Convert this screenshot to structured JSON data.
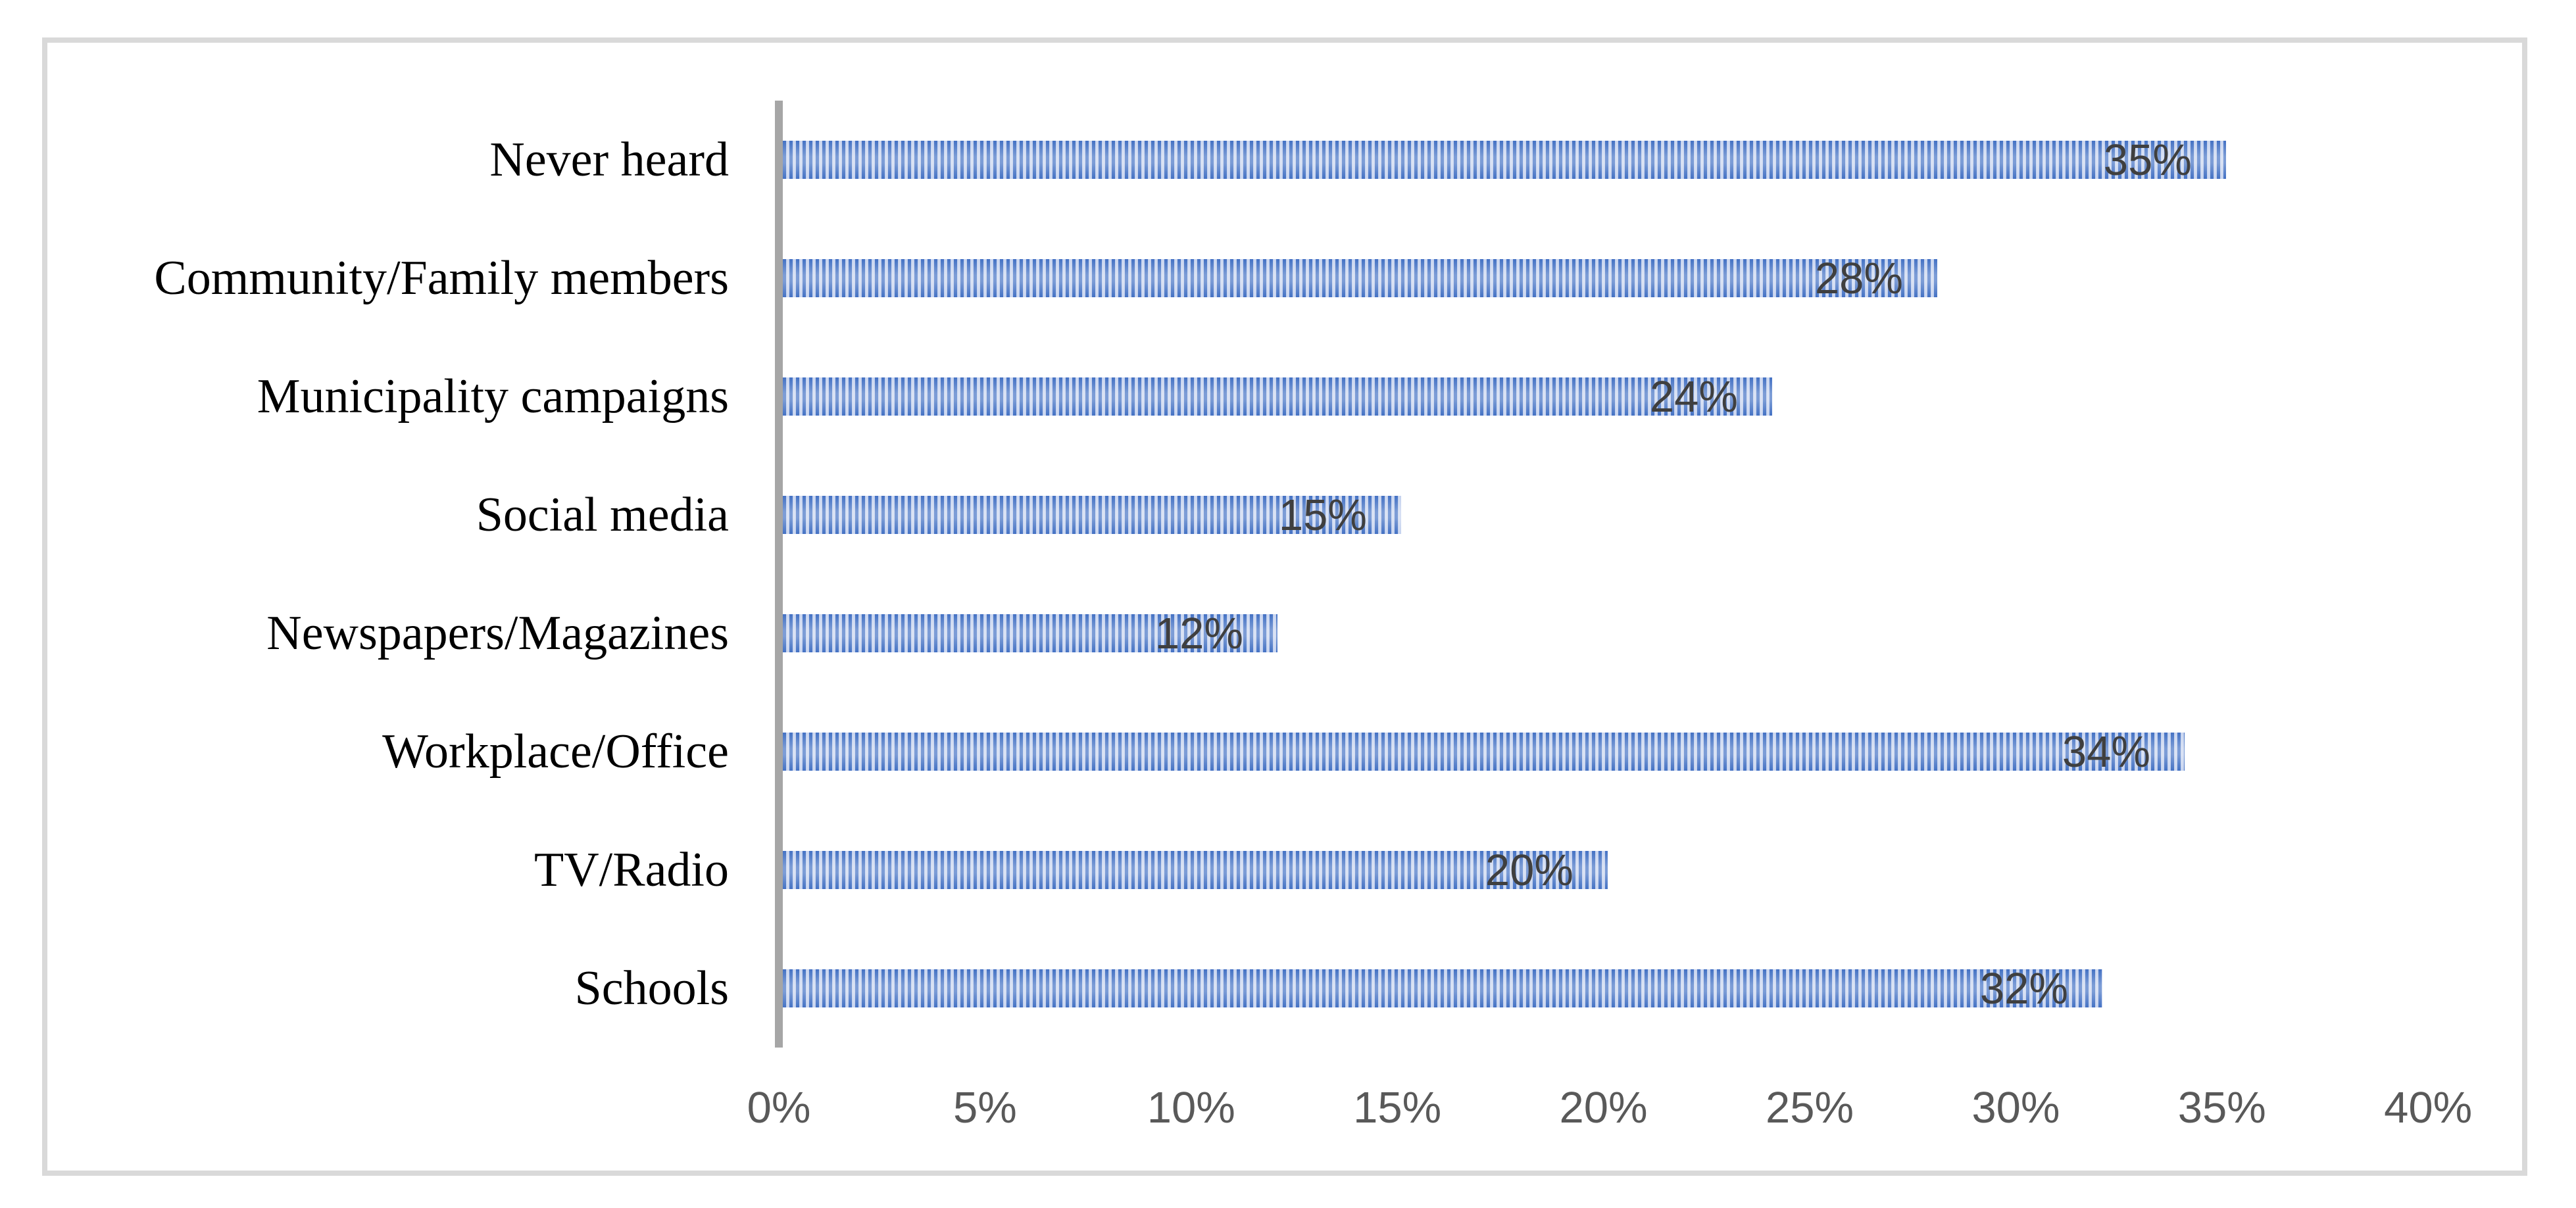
{
  "chart_data": {
    "type": "bar",
    "orientation": "horizontal",
    "title": "",
    "xlabel": "",
    "ylabel": "",
    "categories": [
      "Never heard",
      "Community/Family members",
      "Municipality campaigns",
      "Social media",
      "Newspapers/Magazines",
      "Workplace/Office",
      "TV/Radio",
      "Schools"
    ],
    "values": [
      35,
      28,
      24,
      15,
      12,
      34,
      20,
      32
    ],
    "data_labels": [
      "35%",
      "28%",
      "24%",
      "15%",
      "12%",
      "34%",
      "20%",
      "32%"
    ],
    "x_ticks": [
      "0%",
      "5%",
      "10%",
      "15%",
      "20%",
      "25%",
      "30%",
      "35%",
      "40%"
    ],
    "xlim": [
      0,
      40
    ],
    "grid": false,
    "legend_position": "none",
    "bar_pattern": "vertical-stripes",
    "colors": {
      "bar_stripe_dark": "#4472C4",
      "bar_stripe_light": "#BDCCEC",
      "bar_stripe_light_center": "#CFDAF1",
      "axis_line": "#A6A6A6",
      "tick_label": "#595959",
      "data_label": "#3F3F3F",
      "category_label": "#000000",
      "frame_border": "#D9D9D9",
      "background": "#FFFFFF"
    }
  }
}
